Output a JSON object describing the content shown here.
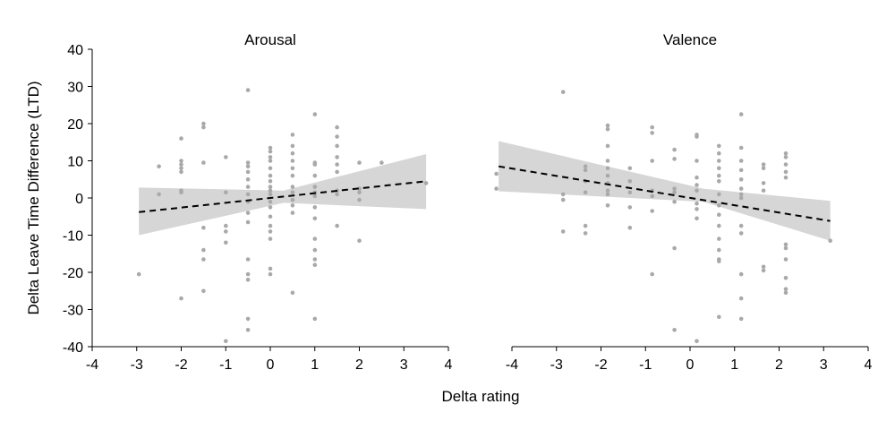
{
  "figure": {
    "ylabel": "Delta Leave Time Difference (LTD)",
    "xlabel": "Delta rating"
  },
  "colors": {
    "points": "#a9a9a9",
    "band": "#d6d6d6",
    "trend": "#000000",
    "axis": "#000000"
  },
  "chart_data": [
    {
      "type": "scatter",
      "title": "Arousal",
      "xlim": [
        -4,
        4
      ],
      "ylim": [
        -40,
        40
      ],
      "x_ticks": [
        -4,
        -3,
        -2,
        -1,
        0,
        1,
        2,
        3,
        4
      ],
      "y_ticks": [
        40,
        30,
        20,
        10,
        0,
        -10,
        -20,
        -30,
        -40
      ],
      "trend": {
        "x": [
          -2.95,
          3.5
        ],
        "y": [
          -3.8,
          4.5
        ],
        "style": "dashed"
      },
      "ci_band": {
        "x": [
          -2.95,
          0.3,
          3.5
        ],
        "lower": [
          -10.0,
          -1.3,
          -3.0
        ],
        "upper": [
          2.8,
          2.0,
          11.8
        ]
      },
      "points": [
        [
          -2.95,
          -20.5
        ],
        [
          -2.5,
          8.5
        ],
        [
          -2.5,
          1.0
        ],
        [
          -2.0,
          16.0
        ],
        [
          -2.0,
          10.0
        ],
        [
          -2.0,
          9.0
        ],
        [
          -2.0,
          8.0
        ],
        [
          -2.0,
          7.0
        ],
        [
          -2.0,
          2.0
        ],
        [
          -2.0,
          1.5
        ],
        [
          -2.0,
          -27.0
        ],
        [
          -1.5,
          20.0
        ],
        [
          -1.5,
          19.0
        ],
        [
          -1.5,
          9.5
        ],
        [
          -1.5,
          -8.0
        ],
        [
          -1.5,
          -14.0
        ],
        [
          -1.5,
          -16.5
        ],
        [
          -1.5,
          -25.0
        ],
        [
          -1.0,
          11.0
        ],
        [
          -1.0,
          1.5
        ],
        [
          -1.0,
          -7.5
        ],
        [
          -1.0,
          -9.0
        ],
        [
          -1.0,
          -12.0
        ],
        [
          -1.0,
          -38.5
        ],
        [
          -0.5,
          29.0
        ],
        [
          -0.5,
          9.5
        ],
        [
          -0.5,
          8.5
        ],
        [
          -0.5,
          7.0
        ],
        [
          -0.5,
          5.0
        ],
        [
          -0.5,
          3.0
        ],
        [
          -0.5,
          1.0
        ],
        [
          -0.5,
          -1.0
        ],
        [
          -0.5,
          -4.0
        ],
        [
          -0.5,
          -6.5
        ],
        [
          -0.5,
          -16.5
        ],
        [
          -0.5,
          -20.5
        ],
        [
          -0.5,
          -22.0
        ],
        [
          -0.5,
          -32.5
        ],
        [
          -0.5,
          -35.5
        ],
        [
          0.0,
          13.5
        ],
        [
          0.0,
          12.5
        ],
        [
          0.0,
          11.0
        ],
        [
          0.0,
          10.0
        ],
        [
          0.0,
          8.0
        ],
        [
          0.0,
          6.0
        ],
        [
          0.0,
          4.5
        ],
        [
          0.0,
          3.0
        ],
        [
          0.0,
          2.0
        ],
        [
          0.0,
          1.0
        ],
        [
          0.0,
          -1.0
        ],
        [
          0.0,
          -2.5
        ],
        [
          0.0,
          -5.0
        ],
        [
          0.0,
          -7.5
        ],
        [
          0.0,
          -9.0
        ],
        [
          0.0,
          -11.0
        ],
        [
          0.0,
          -19.0
        ],
        [
          0.0,
          -20.5
        ],
        [
          0.5,
          17.0
        ],
        [
          0.5,
          14.0
        ],
        [
          0.5,
          12.0
        ],
        [
          0.5,
          10.0
        ],
        [
          0.5,
          8.0
        ],
        [
          0.5,
          6.0
        ],
        [
          0.5,
          3.0
        ],
        [
          0.5,
          1.5
        ],
        [
          0.5,
          -0.5
        ],
        [
          0.5,
          -2.0
        ],
        [
          0.5,
          -4.0
        ],
        [
          0.5,
          -25.5
        ],
        [
          1.0,
          22.5
        ],
        [
          1.0,
          9.5
        ],
        [
          1.0,
          9.0
        ],
        [
          1.0,
          6.0
        ],
        [
          1.0,
          3.0
        ],
        [
          1.0,
          1.5
        ],
        [
          1.0,
          0.5
        ],
        [
          1.0,
          -2.5
        ],
        [
          1.0,
          -5.5
        ],
        [
          1.0,
          -11.0
        ],
        [
          1.0,
          -14.0
        ],
        [
          1.0,
          -16.5
        ],
        [
          1.0,
          -18.0
        ],
        [
          1.0,
          -32.5
        ],
        [
          1.5,
          19.0
        ],
        [
          1.5,
          16.5
        ],
        [
          1.5,
          14.0
        ],
        [
          1.5,
          11.0
        ],
        [
          1.5,
          9.0
        ],
        [
          1.5,
          7.0
        ],
        [
          1.5,
          2.0
        ],
        [
          1.5,
          1.0
        ],
        [
          1.5,
          -7.5
        ],
        [
          2.0,
          9.5
        ],
        [
          2.0,
          2.5
        ],
        [
          2.0,
          1.5
        ],
        [
          2.0,
          -0.5
        ],
        [
          2.0,
          -11.5
        ],
        [
          2.5,
          9.5
        ],
        [
          3.5,
          4.0
        ]
      ]
    },
    {
      "type": "scatter",
      "title": "Valence",
      "xlim": [
        -4,
        4
      ],
      "ylim": [
        -40,
        40
      ],
      "x_ticks": [
        -4,
        -3,
        -2,
        -1,
        0,
        1,
        2,
        3,
        4
      ],
      "y_ticks": [
        40,
        30,
        20,
        10,
        0,
        -10,
        -20,
        -30,
        -40
      ],
      "trend": {
        "x": [
          -4.3,
          3.15
        ],
        "y": [
          8.5,
          -6.2
        ],
        "style": "dashed"
      },
      "ci_band": {
        "x": [
          -4.3,
          0.3,
          3.15
        ],
        "lower": [
          1.8,
          -1.0,
          -11.5
        ],
        "upper": [
          15.3,
          2.5,
          -0.8
        ]
      },
      "points": [
        [
          -4.35,
          6.5
        ],
        [
          -4.35,
          2.5
        ],
        [
          -2.85,
          28.5
        ],
        [
          -2.85,
          1.0
        ],
        [
          -2.85,
          -0.5
        ],
        [
          -2.85,
          -9.0
        ],
        [
          -2.35,
          8.5
        ],
        [
          -2.35,
          7.5
        ],
        [
          -2.35,
          4.5
        ],
        [
          -2.35,
          1.5
        ],
        [
          -2.35,
          -7.5
        ],
        [
          -2.35,
          -9.5
        ],
        [
          -1.85,
          19.5
        ],
        [
          -1.85,
          18.5
        ],
        [
          -1.85,
          14.0
        ],
        [
          -1.85,
          10.0
        ],
        [
          -1.85,
          8.0
        ],
        [
          -1.85,
          6.0
        ],
        [
          -1.85,
          4.0
        ],
        [
          -1.85,
          2.0
        ],
        [
          -1.85,
          1.0
        ],
        [
          -1.85,
          -2.0
        ],
        [
          -1.35,
          8.0
        ],
        [
          -1.35,
          4.5
        ],
        [
          -1.35,
          1.5
        ],
        [
          -1.35,
          -2.5
        ],
        [
          -1.35,
          -8.0
        ],
        [
          -0.85,
          19.0
        ],
        [
          -0.85,
          17.5
        ],
        [
          -0.85,
          10.0
        ],
        [
          -0.85,
          2.0
        ],
        [
          -0.85,
          0.5
        ],
        [
          -0.85,
          -3.5
        ],
        [
          -0.85,
          -20.5
        ],
        [
          -0.35,
          13.0
        ],
        [
          -0.35,
          10.5
        ],
        [
          -0.35,
          2.5
        ],
        [
          -0.35,
          1.5
        ],
        [
          -0.35,
          -1.0
        ],
        [
          -0.35,
          -13.5
        ],
        [
          -0.35,
          -35.5
        ],
        [
          0.15,
          17.0
        ],
        [
          0.15,
          16.5
        ],
        [
          0.15,
          10.0
        ],
        [
          0.15,
          5.5
        ],
        [
          0.15,
          3.5
        ],
        [
          0.15,
          2.0
        ],
        [
          0.15,
          -1.5
        ],
        [
          0.15,
          -3.0
        ],
        [
          0.15,
          -5.5
        ],
        [
          0.15,
          -38.5
        ],
        [
          0.65,
          14.0
        ],
        [
          0.65,
          12.0
        ],
        [
          0.65,
          10.0
        ],
        [
          0.65,
          8.0
        ],
        [
          0.65,
          6.0
        ],
        [
          0.65,
          4.5
        ],
        [
          0.65,
          1.0
        ],
        [
          0.65,
          -2.0
        ],
        [
          0.65,
          -4.5
        ],
        [
          0.65,
          -7.5
        ],
        [
          0.65,
          -11.0
        ],
        [
          0.65,
          -14.0
        ],
        [
          0.65,
          -16.5
        ],
        [
          0.65,
          -17.0
        ],
        [
          0.65,
          -32.0
        ],
        [
          1.15,
          22.5
        ],
        [
          1.15,
          13.5
        ],
        [
          1.15,
          10.0
        ],
        [
          1.15,
          7.5
        ],
        [
          1.15,
          5.0
        ],
        [
          1.15,
          2.5
        ],
        [
          1.15,
          1.0
        ],
        [
          1.15,
          0.0
        ],
        [
          1.15,
          -7.5
        ],
        [
          1.15,
          -9.5
        ],
        [
          1.15,
          -20.5
        ],
        [
          1.15,
          -27.0
        ],
        [
          1.15,
          -32.5
        ],
        [
          1.65,
          9.0
        ],
        [
          1.65,
          8.0
        ],
        [
          1.65,
          4.0
        ],
        [
          1.65,
          2.0
        ],
        [
          1.65,
          -18.5
        ],
        [
          1.65,
          -19.5
        ],
        [
          2.15,
          12.0
        ],
        [
          2.15,
          11.0
        ],
        [
          2.15,
          9.0
        ],
        [
          2.15,
          7.0
        ],
        [
          2.15,
          5.5
        ],
        [
          2.15,
          -12.5
        ],
        [
          2.15,
          -13.5
        ],
        [
          2.15,
          -16.5
        ],
        [
          2.15,
          -21.5
        ],
        [
          2.15,
          -24.5
        ],
        [
          2.15,
          -25.5
        ],
        [
          3.15,
          -11.5
        ]
      ]
    }
  ]
}
